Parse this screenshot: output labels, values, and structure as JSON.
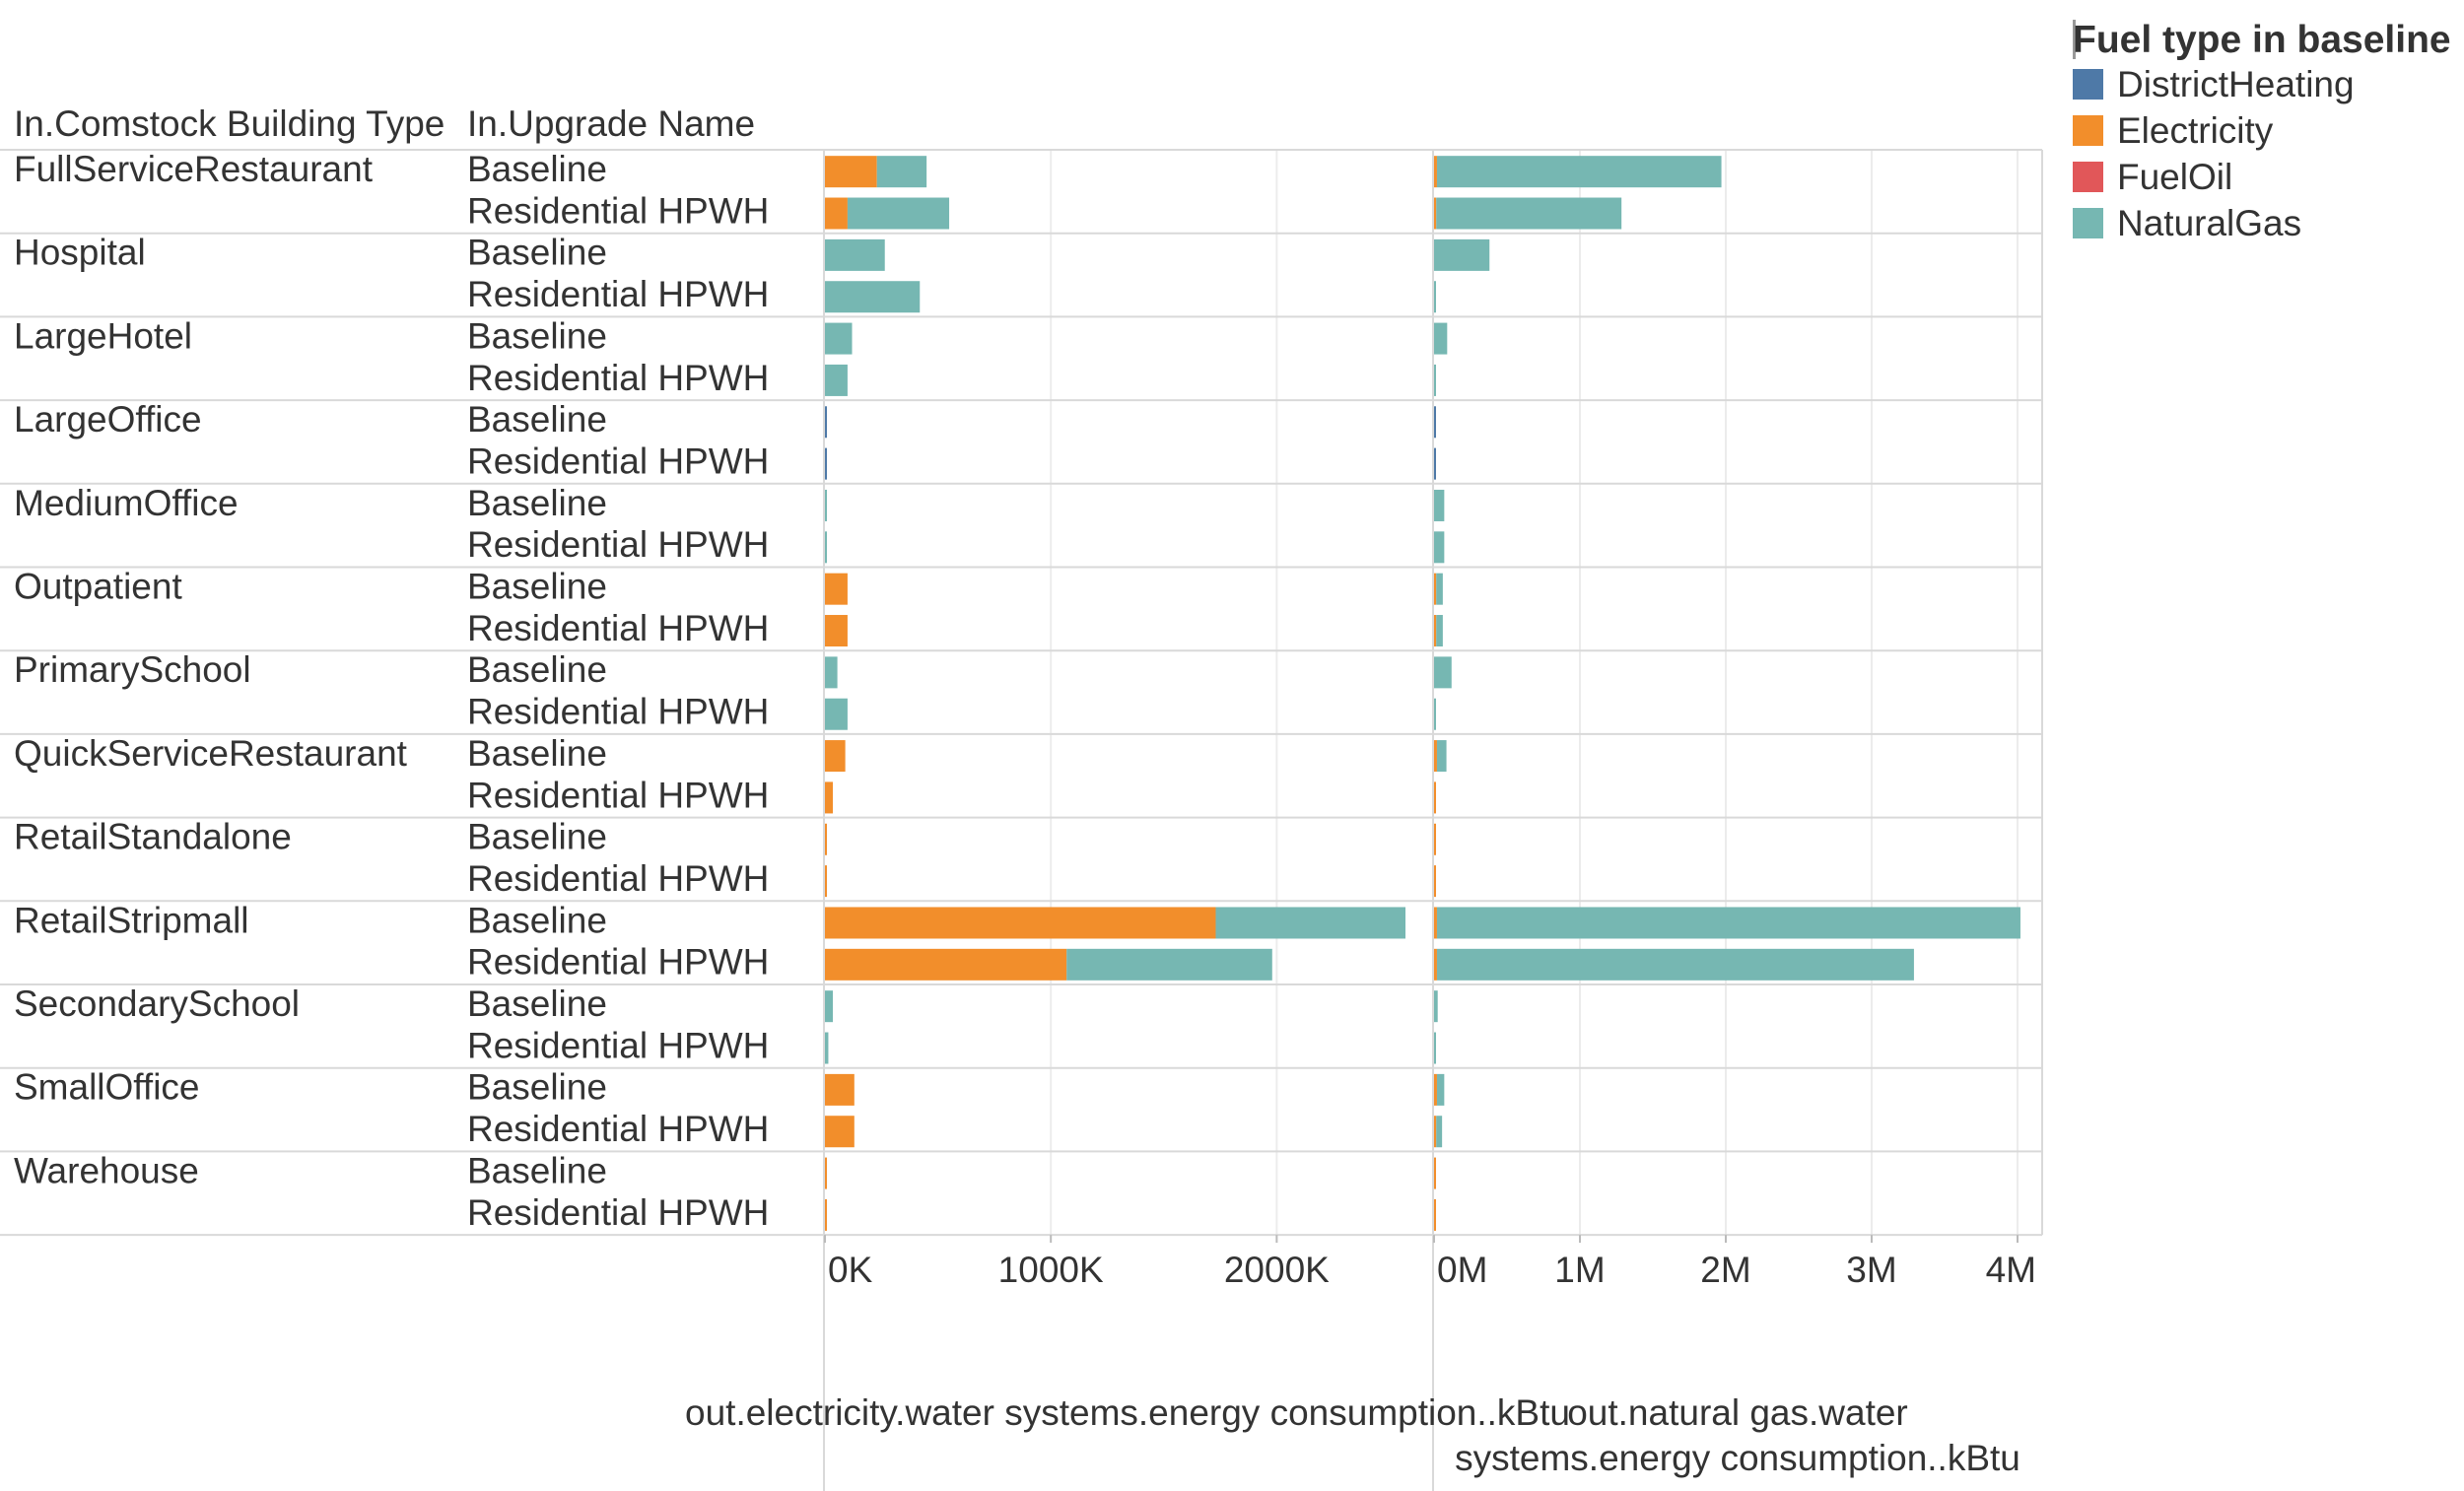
{
  "chart_data": {
    "type": "bar",
    "orientation": "horizontal",
    "stacked": true,
    "row_header_1": "In.Comstock Building Type",
    "row_header_2": "In.Upgrade Name",
    "legend_title": "Fuel type in baseline",
    "legend_position": "top-right",
    "legend": [
      {
        "name": "DistrictHeating",
        "color": "#4e79a7"
      },
      {
        "name": "Electricity",
        "color": "#f28e2b"
      },
      {
        "name": "FuelOil",
        "color": "#e15759"
      },
      {
        "name": "NaturalGas",
        "color": "#76b7b2"
      }
    ],
    "panels": [
      {
        "xlabel": "out.electricity.water systems.energy consumption..kBtu",
        "xlim": [
          0,
          2700000
        ],
        "tick_values": [
          0,
          1000000,
          2000000
        ],
        "tick_labels": [
          "0K",
          "1000K",
          "2000K"
        ],
        "grid": true
      },
      {
        "xlabel": "out.natural gas.water systems.energy consumption..kBtu",
        "xlim": [
          0,
          4100000
        ],
        "tick_values": [
          0,
          1000000,
          2000000,
          3000000,
          4000000
        ],
        "tick_labels": [
          "0M",
          "1M",
          "2M",
          "3M",
          "4M"
        ],
        "grid": true
      }
    ],
    "groups": [
      {
        "name": "FullServiceRestaurant",
        "rows": [
          {
            "upgrade": "Baseline",
            "elec": {
              "NaturalGas": 220000,
              "Electricity": 230000
            },
            "gas": {
              "NaturalGas": 1950000,
              "Electricity": 20000
            }
          },
          {
            "upgrade": "Residential HPWH",
            "elec": {
              "NaturalGas": 450000,
              "Electricity": 100000
            },
            "gas": {
              "NaturalGas": 1270000,
              "Electricity": 15000
            }
          }
        ]
      },
      {
        "name": "Hospital",
        "rows": [
          {
            "upgrade": "Baseline",
            "elec": {
              "NaturalGas": 265000
            },
            "gas": {
              "NaturalGas": 380000
            }
          },
          {
            "upgrade": "Residential HPWH",
            "elec": {
              "NaturalGas": 420000
            },
            "gas": {
              "NaturalGas": 10000
            }
          }
        ]
      },
      {
        "name": "LargeHotel",
        "rows": [
          {
            "upgrade": "Baseline",
            "elec": {
              "NaturalGas": 120000
            },
            "gas": {
              "NaturalGas": 90000
            }
          },
          {
            "upgrade": "Residential HPWH",
            "elec": {
              "NaturalGas": 100000
            },
            "gas": {
              "NaturalGas": 10000
            }
          }
        ]
      },
      {
        "name": "LargeOffice",
        "rows": [
          {
            "upgrade": "Baseline",
            "elec": {
              "DistrictHeating": 6000
            },
            "gas": {
              "DistrictHeating": 10000
            }
          },
          {
            "upgrade": "Residential HPWH",
            "elec": {
              "DistrictHeating": 6000
            },
            "gas": {
              "DistrictHeating": 10000
            }
          }
        ]
      },
      {
        "name": "MediumOffice",
        "rows": [
          {
            "upgrade": "Baseline",
            "elec": {
              "NaturalGas": 6000
            },
            "gas": {
              "NaturalGas": 70000
            }
          },
          {
            "upgrade": "Residential HPWH",
            "elec": {
              "NaturalGas": 6000
            },
            "gas": {
              "NaturalGas": 70000
            }
          }
        ]
      },
      {
        "name": "Outpatient",
        "rows": [
          {
            "upgrade": "Baseline",
            "elec": {
              "Electricity": 100000
            },
            "gas": {
              "NaturalGas": 45000,
              "Electricity": 15000
            }
          },
          {
            "upgrade": "Residential HPWH",
            "elec": {
              "Electricity": 100000
            },
            "gas": {
              "NaturalGas": 45000,
              "Electricity": 15000
            }
          }
        ]
      },
      {
        "name": "PrimarySchool",
        "rows": [
          {
            "upgrade": "Baseline",
            "elec": {
              "NaturalGas": 55000
            },
            "gas": {
              "NaturalGas": 120000
            }
          },
          {
            "upgrade": "Residential HPWH",
            "elec": {
              "NaturalGas": 100000
            },
            "gas": {
              "NaturalGas": 10000
            }
          }
        ]
      },
      {
        "name": "QuickServiceRestaurant",
        "rows": [
          {
            "upgrade": "Baseline",
            "elec": {
              "Electricity": 90000
            },
            "gas": {
              "NaturalGas": 65000,
              "Electricity": 20000
            }
          },
          {
            "upgrade": "Residential HPWH",
            "elec": {
              "Electricity": 35000
            },
            "gas": {
              "Electricity": 10000
            }
          }
        ]
      },
      {
        "name": "RetailStandalone",
        "rows": [
          {
            "upgrade": "Baseline",
            "elec": {
              "Electricity": 6000
            },
            "gas": {
              "Electricity": 10000
            }
          },
          {
            "upgrade": "Residential HPWH",
            "elec": {
              "Electricity": 6000
            },
            "gas": {
              "Electricity": 10000
            }
          }
        ]
      },
      {
        "name": "RetailStripmall",
        "rows": [
          {
            "upgrade": "Baseline",
            "elec": {
              "NaturalGas": 840000,
              "Electricity": 1730000
            },
            "gas": {
              "NaturalGas": 4000000,
              "Electricity": 20000
            }
          },
          {
            "upgrade": "Residential HPWH",
            "elec": {
              "NaturalGas": 910000,
              "Electricity": 1070000
            },
            "gas": {
              "NaturalGas": 3270000,
              "Electricity": 20000
            }
          }
        ]
      },
      {
        "name": "SecondarySchool",
        "rows": [
          {
            "upgrade": "Baseline",
            "elec": {
              "NaturalGas": 35000
            },
            "gas": {
              "NaturalGas": 25000
            }
          },
          {
            "upgrade": "Residential HPWH",
            "elec": {
              "NaturalGas": 15000
            },
            "gas": {
              "NaturalGas": 10000
            }
          }
        ]
      },
      {
        "name": "SmallOffice",
        "rows": [
          {
            "upgrade": "Baseline",
            "elec": {
              "Electricity": 130000
            },
            "gas": {
              "NaturalGas": 50000,
              "Electricity": 20000
            }
          },
          {
            "upgrade": "Residential HPWH",
            "elec": {
              "Electricity": 130000
            },
            "gas": {
              "NaturalGas": 40000,
              "Electricity": 15000
            }
          }
        ]
      },
      {
        "name": "Warehouse",
        "rows": [
          {
            "upgrade": "Baseline",
            "elec": {
              "Electricity": 6000
            },
            "gas": {
              "Electricity": 10000
            }
          },
          {
            "upgrade": "Residential HPWH",
            "elec": {
              "Electricity": 6000
            },
            "gas": {
              "Electricity": 10000
            }
          }
        ]
      }
    ]
  }
}
